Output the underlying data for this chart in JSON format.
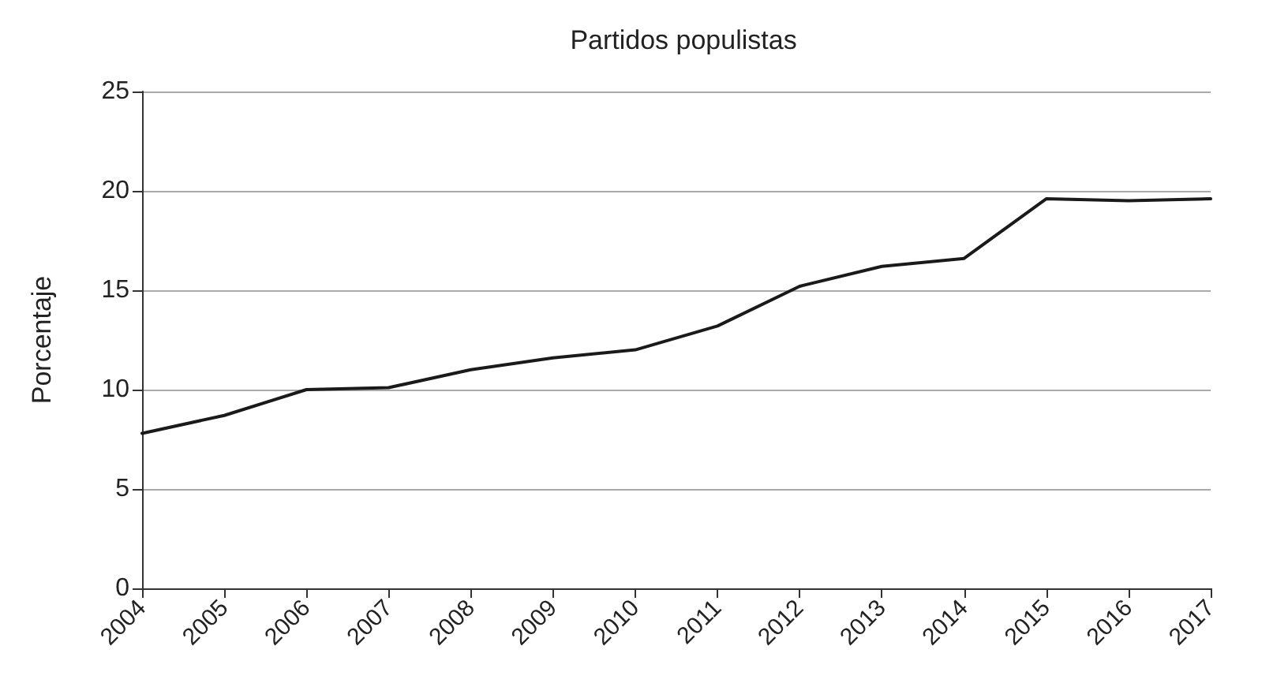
{
  "chart_data": {
    "type": "line",
    "title": "Partidos populistas",
    "ylabel": "Porcentaje",
    "categories": [
      "2004",
      "2005",
      "2006",
      "2007",
      "2008",
      "2009",
      "2010",
      "2011",
      "2012",
      "2013",
      "2014",
      "2015",
      "2016",
      "2017"
    ],
    "series": [
      {
        "color": "#1a1a1a",
        "values": [
          7.8,
          8.7,
          10.0,
          10.1,
          11.0,
          11.6,
          12.0,
          13.2,
          15.2,
          16.2,
          16.6,
          19.6,
          19.5,
          19.6
        ]
      }
    ],
    "ylim": [
      0,
      25
    ],
    "yticks": [
      0,
      5,
      10,
      15,
      20,
      25
    ],
    "grid": "y",
    "marker": "none",
    "line_style": "solid"
  }
}
